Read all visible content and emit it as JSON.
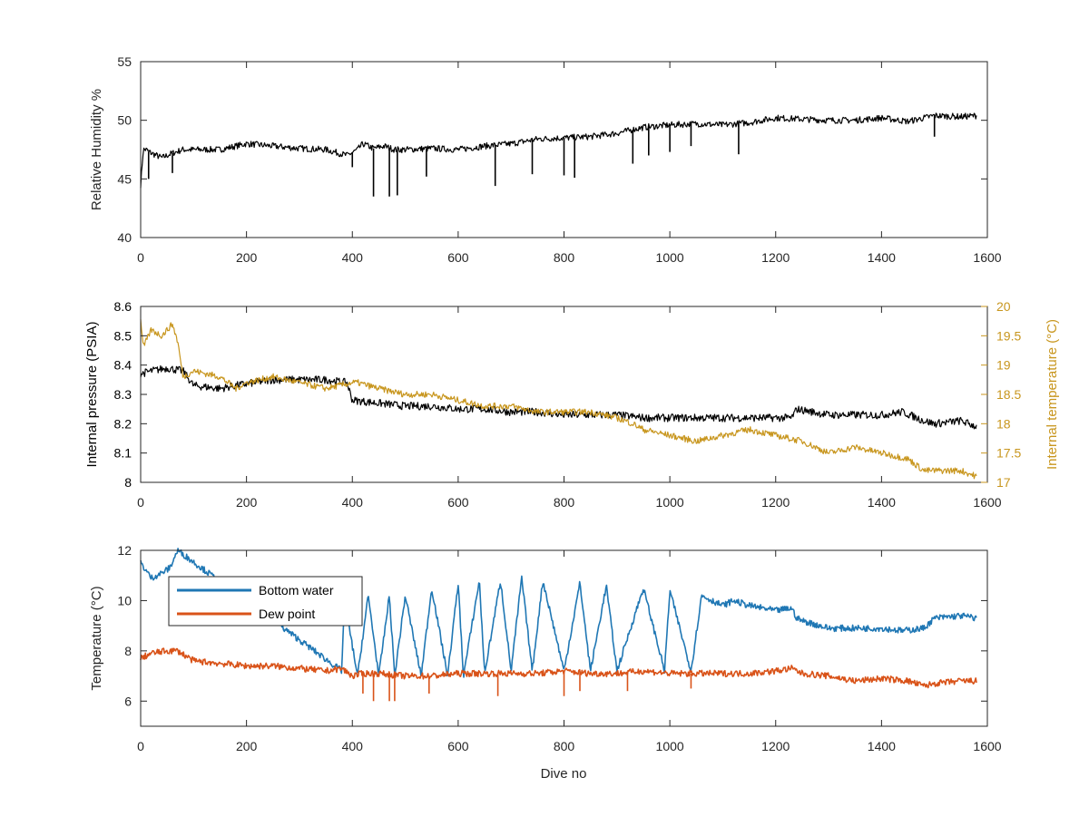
{
  "colors": {
    "black": "#000000",
    "axis": "#262626",
    "tick_text": "#262626",
    "right_axis": "#c8961e",
    "bottom_water": "#1f77b4",
    "dew_point": "#d95319"
  },
  "chart_data": [
    {
      "type": "line",
      "title": "",
      "xlabel": "",
      "ylabel": "Relative Humidity %",
      "xlim": [
        0,
        1600
      ],
      "ylim": [
        40,
        55
      ],
      "xticks": [
        "0",
        "200",
        "400",
        "600",
        "800",
        "1000",
        "1200",
        "1400",
        "1600"
      ],
      "yticks": [
        "40",
        "45",
        "50",
        "55"
      ],
      "grid": false,
      "series": [
        {
          "name": "",
          "color": "#000000",
          "x": [
            0,
            5,
            10,
            20,
            40,
            60,
            80,
            100,
            150,
            200,
            250,
            300,
            350,
            390,
            410,
            420,
            440,
            460,
            480,
            500,
            550,
            600,
            650,
            700,
            750,
            800,
            850,
            900,
            950,
            1000,
            1050,
            1100,
            1150,
            1200,
            1250,
            1300,
            1350,
            1400,
            1450,
            1500,
            1550,
            1580
          ],
          "y": [
            44.5,
            47.5,
            47.5,
            47.2,
            46.8,
            47.2,
            47.5,
            47.5,
            47.5,
            48.0,
            47.8,
            47.6,
            47.5,
            47.0,
            47.5,
            48.0,
            47.6,
            47.8,
            47.5,
            47.5,
            47.6,
            47.5,
            47.8,
            48.0,
            48.4,
            48.5,
            48.6,
            48.9,
            49.4,
            49.6,
            49.7,
            49.6,
            49.8,
            50.2,
            50.1,
            50.0,
            50.0,
            50.2,
            49.9,
            50.4,
            50.3,
            50.4
          ]
        }
      ],
      "dips": {
        "x": [
          15,
          60,
          400,
          440,
          470,
          485,
          540,
          670,
          740,
          800,
          820,
          930,
          960,
          1000,
          1040,
          1130,
          1500
        ],
        "y": [
          45.0,
          45.5,
          46.0,
          43.5,
          43.5,
          43.6,
          45.2,
          44.4,
          45.4,
          45.3,
          45.1,
          46.3,
          47.0,
          47.3,
          47.8,
          47.1,
          48.6
        ]
      }
    },
    {
      "type": "line",
      "title": "",
      "xlabel": "",
      "ylabel": "Internal pressure (PSIA)",
      "ylabel_right": "Internal temperature (°C)",
      "xlim": [
        0,
        1600
      ],
      "ylim": [
        8,
        8.6
      ],
      "ylim_right": [
        17,
        20
      ],
      "xticks": [
        "0",
        "200",
        "400",
        "600",
        "800",
        "1000",
        "1200",
        "1400",
        "1600"
      ],
      "yticks": [
        "8",
        "8.1",
        "8.2",
        "8.3",
        "8.4",
        "8.5",
        "8.6"
      ],
      "yticks_right": [
        "17",
        "17.5",
        "18",
        "18.5",
        "19",
        "19.5",
        "20"
      ],
      "grid": false,
      "series": [
        {
          "name": "",
          "axis": "left",
          "color": "#000000",
          "x": [
            0,
            20,
            50,
            80,
            100,
            150,
            180,
            250,
            300,
            350,
            390,
            400,
            450,
            500,
            550,
            600,
            650,
            700,
            750,
            800,
            850,
            900,
            950,
            1000,
            1050,
            1100,
            1150,
            1200,
            1230,
            1240,
            1300,
            1350,
            1400,
            1440,
            1480,
            1500,
            1550,
            1580
          ],
          "y": [
            8.37,
            8.38,
            8.39,
            8.38,
            8.33,
            8.32,
            8.33,
            8.35,
            8.35,
            8.35,
            8.34,
            8.28,
            8.27,
            8.26,
            8.26,
            8.25,
            8.25,
            8.24,
            8.24,
            8.23,
            8.23,
            8.23,
            8.22,
            8.22,
            8.22,
            8.22,
            8.22,
            8.22,
            8.22,
            8.25,
            8.23,
            8.23,
            8.23,
            8.24,
            8.21,
            8.2,
            8.21,
            8.19
          ]
        },
        {
          "name": "",
          "axis": "right",
          "color": "#c8961e",
          "x": [
            0,
            5,
            20,
            40,
            60,
            70,
            80,
            100,
            150,
            180,
            200,
            250,
            300,
            350,
            400,
            410,
            450,
            500,
            550,
            600,
            650,
            700,
            750,
            800,
            850,
            900,
            930,
            950,
            1000,
            1050,
            1100,
            1150,
            1200,
            1250,
            1300,
            1350,
            1400,
            1450,
            1480,
            1500,
            1550,
            1580
          ],
          "y": [
            19.8,
            19.3,
            19.6,
            19.5,
            19.7,
            19.4,
            18.8,
            18.9,
            18.8,
            18.6,
            18.7,
            18.8,
            18.7,
            18.6,
            18.7,
            18.7,
            18.6,
            18.5,
            18.5,
            18.4,
            18.3,
            18.3,
            18.2,
            18.2,
            18.2,
            18.1,
            18.0,
            17.9,
            17.8,
            17.7,
            17.8,
            17.9,
            17.8,
            17.7,
            17.5,
            17.6,
            17.5,
            17.4,
            17.2,
            17.2,
            17.2,
            17.1
          ]
        }
      ]
    },
    {
      "type": "line",
      "title": "",
      "xlabel": "Dive no",
      "ylabel": "Temperature (°C)",
      "xlim": [
        0,
        1600
      ],
      "ylim": [
        5,
        12
      ],
      "xticks": [
        "0",
        "200",
        "400",
        "600",
        "800",
        "1000",
        "1200",
        "1400",
        "1600"
      ],
      "yticks": [
        "6",
        "8",
        "10",
        "12"
      ],
      "grid": false,
      "legend_position": "top-left",
      "series": [
        {
          "name": "Bottom water",
          "color": "#1f77b4",
          "x": [
            0,
            10,
            20,
            40,
            55,
            70,
            380,
            385,
            410,
            430,
            450,
            470,
            480,
            500,
            530,
            550,
            580,
            600,
            610,
            640,
            650,
            680,
            700,
            720,
            740,
            760,
            800,
            830,
            850,
            880,
            900,
            950,
            990,
            1000,
            1040,
            1060,
            1100,
            1120,
            1150,
            1200,
            1230,
            1240,
            1250,
            1300,
            1350,
            1400,
            1440,
            1480,
            1500,
            1550,
            1580
          ],
          "y": [
            11.5,
            11.2,
            10.9,
            11.1,
            11.3,
            12.0,
            7.2,
            10.0,
            7.0,
            10.2,
            7.0,
            10.2,
            7.0,
            10.2,
            7.0,
            10.5,
            7.0,
            10.7,
            7.0,
            10.8,
            7.1,
            10.8,
            7.2,
            10.9,
            7.2,
            10.8,
            7.2,
            10.7,
            7.2,
            10.6,
            7.2,
            10.5,
            7.2,
            10.4,
            7.2,
            10.2,
            9.8,
            10.0,
            9.8,
            9.6,
            9.7,
            9.3,
            9.2,
            8.9,
            8.9,
            8.9,
            8.8,
            8.9,
            9.3,
            9.4,
            9.3
          ]
        },
        {
          "name": "Dew point",
          "color": "#d95319",
          "x": [
            0,
            20,
            50,
            70,
            100,
            150,
            200,
            250,
            300,
            350,
            380,
            400,
            420,
            450,
            500,
            550,
            600,
            650,
            700,
            750,
            800,
            850,
            900,
            950,
            1000,
            1050,
            1100,
            1150,
            1200,
            1230,
            1250,
            1300,
            1350,
            1400,
            1450,
            1480,
            1500,
            1550,
            1580
          ],
          "y": [
            7.7,
            7.9,
            8.0,
            8.0,
            7.6,
            7.5,
            7.4,
            7.4,
            7.3,
            7.2,
            7.3,
            7.0,
            7.1,
            7.1,
            7.0,
            7.0,
            7.1,
            7.1,
            7.1,
            7.1,
            7.2,
            7.1,
            7.1,
            7.2,
            7.1,
            7.1,
            7.1,
            7.1,
            7.2,
            7.3,
            7.1,
            7.0,
            6.8,
            6.9,
            6.8,
            6.6,
            6.7,
            6.8,
            6.8
          ]
        }
      ],
      "dips": {
        "x": [
          420,
          440,
          470,
          480,
          545,
          675,
          800,
          830,
          920,
          1040
        ],
        "y": [
          6.3,
          6.0,
          6.0,
          6.0,
          6.3,
          6.2,
          6.2,
          6.4,
          6.4,
          6.5
        ]
      }
    }
  ]
}
